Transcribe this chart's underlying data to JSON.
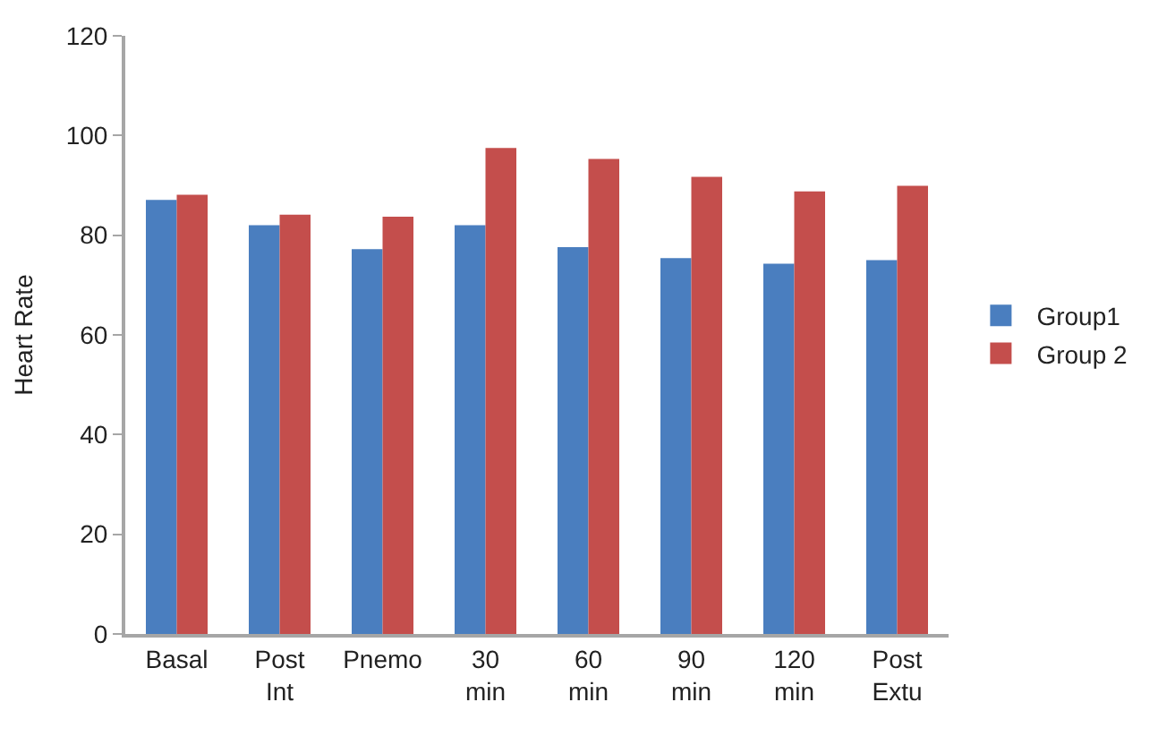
{
  "chart_data": {
    "type": "bar",
    "ylabel": "Heart Rate",
    "categories": [
      "Basal",
      "Post Int",
      "Pnemo",
      "30 min",
      "60 min",
      "90 min",
      "120 min",
      "Post Extu"
    ],
    "series": [
      {
        "name": "Group1",
        "color": "#4a7ebf",
        "values": [
          87.1,
          82.0,
          77.2,
          82.0,
          77.6,
          75.4,
          74.3,
          75.0
        ]
      },
      {
        "name": "Group 2",
        "color": "#c44e4c",
        "values": [
          88.1,
          84.1,
          83.7,
          97.5,
          95.3,
          91.7,
          88.8,
          89.9
        ]
      }
    ],
    "ylim": [
      0,
      120
    ],
    "yticks": [
      0,
      20,
      40,
      60,
      80,
      100,
      120
    ],
    "grid": false,
    "legend": "right"
  }
}
